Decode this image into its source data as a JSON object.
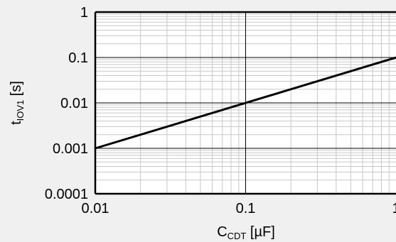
{
  "chart_data": {
    "type": "line",
    "x_scale": "log",
    "y_scale": "log",
    "xlim": [
      0.01,
      1
    ],
    "ylim": [
      0.0001,
      1
    ],
    "grid": true,
    "x_ticks": [
      0.01,
      0.1,
      1
    ],
    "x_tick_labels": [
      "0.01",
      "0.1",
      "1"
    ],
    "y_ticks": [
      0.0001,
      0.001,
      0.01,
      0.1,
      1
    ],
    "y_tick_labels": [
      "0.0001",
      "0.001",
      "0.01",
      "0.1",
      "1"
    ],
    "xlabel": {
      "main": "C",
      "sub": "CDT",
      "unit": " [µF]"
    },
    "ylabel": {
      "main": "t",
      "sub": "IOV1",
      "unit": " [s]"
    },
    "series": [
      {
        "x": [
          0.01,
          1
        ],
        "y": [
          0.001,
          0.1
        ]
      }
    ]
  }
}
